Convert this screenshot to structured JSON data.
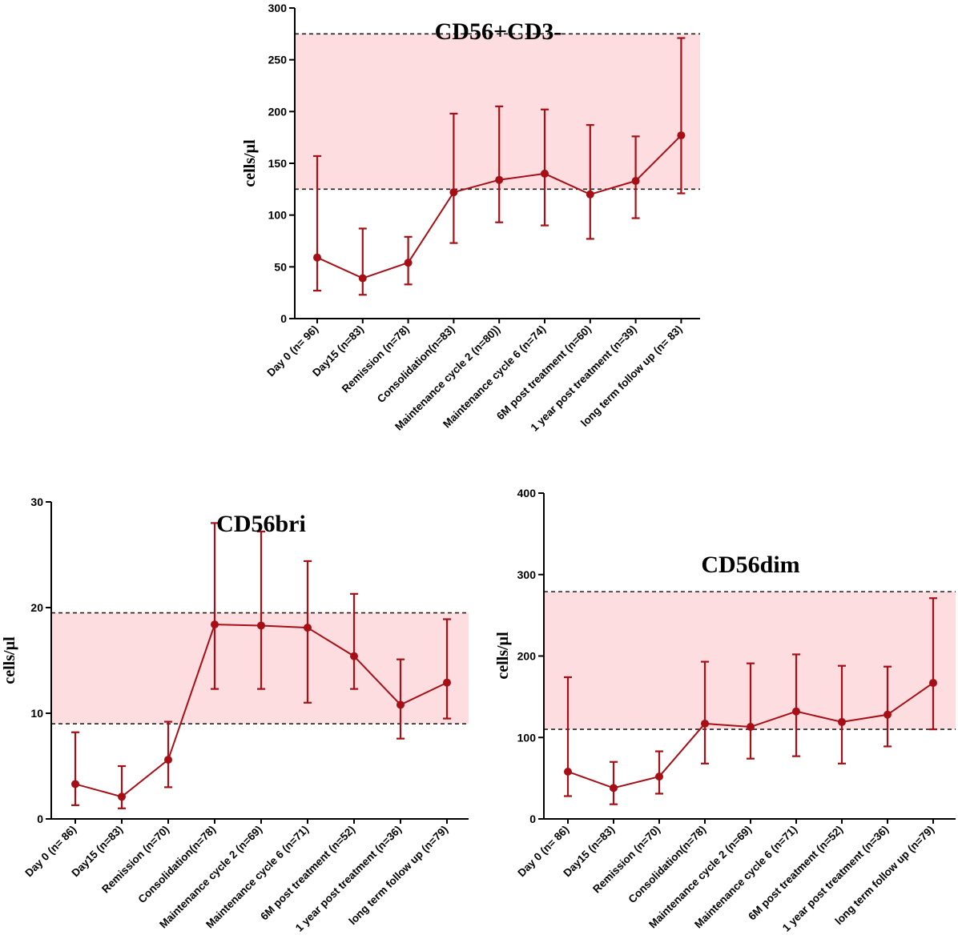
{
  "colors": {
    "series": "#a50f15",
    "band": "#fddde0",
    "axis": "#000000",
    "refline": "#222222"
  },
  "chart_data": [
    {
      "type": "line",
      "title": "CD56+CD3-",
      "ylabel": "cells/µl",
      "xlabel": "",
      "ylim": [
        0,
        300
      ],
      "yticks": [
        0,
        50,
        100,
        150,
        200,
        250,
        300
      ],
      "reference_band": [
        125,
        275
      ],
      "categories": [
        "Day 0 (n= 96)",
        "Day15 (n=83)",
        "Remission (n=78)",
        "Consolidation(n=83)",
        "Maintenance cycle 2 (n=80))",
        "Maintenance cycle 6 (n=74)",
        "6M post treatment (n=60)",
        "1 year post treatment (n=39)",
        "long term follow up (n= 83)"
      ],
      "values": [
        59,
        39,
        54,
        122,
        134,
        140,
        120,
        133,
        177
      ],
      "error_low": [
        27,
        23,
        33,
        73,
        93,
        90,
        77,
        97,
        121
      ],
      "error_high": [
        157,
        87,
        79,
        198,
        205,
        202,
        187,
        176,
        271
      ]
    },
    {
      "type": "line",
      "title": "CD56bri",
      "ylabel": "cells/µl",
      "xlabel": "",
      "ylim": [
        0,
        30
      ],
      "yticks": [
        0,
        10,
        20,
        30
      ],
      "reference_band": [
        9,
        19.5
      ],
      "categories": [
        "Day 0 (n= 86)",
        "Day15 (n=83)",
        "Remission (n=70)",
        "Consolidation(n=78)",
        "Maintenance cycle 2 (n=69)",
        "Maintenance cycle 6 (n=71)",
        "6M post treatment (n=52)",
        "1 year post treatment (n=36)",
        "long term follow up (n=79)"
      ],
      "values": [
        3.3,
        2.1,
        5.6,
        18.4,
        18.3,
        18.1,
        15.4,
        10.8,
        12.9
      ],
      "error_low": [
        1.3,
        1.0,
        3.0,
        12.3,
        12.3,
        11.0,
        12.3,
        7.6,
        9.5
      ],
      "error_high": [
        8.2,
        5.0,
        9.2,
        28.0,
        27.2,
        24.4,
        21.3,
        15.1,
        18.9
      ]
    },
    {
      "type": "line",
      "title": "CD56dim",
      "ylabel": "cells/µl",
      "xlabel": "",
      "ylim": [
        0,
        400
      ],
      "yticks": [
        0,
        100,
        200,
        300,
        400
      ],
      "reference_band": [
        110,
        279
      ],
      "categories": [
        "Day 0 (n= 86)",
        "Day15 (n=83)",
        "Remission (n=70)",
        "Consolidation(n=78)",
        "Maintenance cycle 2 (n=69)",
        "Maintenance cycle 6 (n=71)",
        "6M post treatment (n=52)",
        "1 year post treatment (n=36)",
        "long term follow up (n=79)"
      ],
      "values": [
        58,
        38,
        52,
        117,
        113,
        132,
        119,
        128,
        167
      ],
      "error_low": [
        28,
        18,
        31,
        68,
        74,
        77,
        68,
        89,
        110
      ],
      "error_high": [
        174,
        70,
        83,
        193,
        191,
        202,
        188,
        187,
        271
      ]
    }
  ]
}
